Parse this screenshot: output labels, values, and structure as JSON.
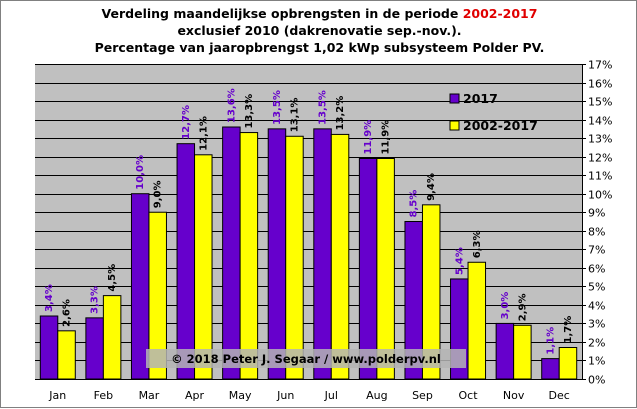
{
  "title": {
    "line1_prefix": "Verdeling maandelijkse opbrengsten in de periode ",
    "line1_highlight": "2002-2017",
    "line2": "exclusief 2010 (dakrenovatie sep.-nov.).",
    "line3": "Percentage van jaaropbrengst 1,02 kWp subsysteem Polder PV."
  },
  "chart_data": {
    "type": "bar",
    "categories": [
      "Jan",
      "Feb",
      "Mar",
      "Apr",
      "May",
      "Jun",
      "Jul",
      "Aug",
      "Sep",
      "Oct",
      "Nov",
      "Dec"
    ],
    "series": [
      {
        "name": "2017",
        "color": "#6600cc",
        "values": [
          3.4,
          3.3,
          10.0,
          12.7,
          13.6,
          13.5,
          13.5,
          11.9,
          8.5,
          5.4,
          3.0,
          1.1
        ],
        "labels": [
          "3,4%",
          "3,3%",
          "10,0%",
          "12,7%",
          "13,6%",
          "13,5%",
          "13,5%",
          "11,9%",
          "8,5%",
          "5,4%",
          "3,0%",
          "1,1%"
        ]
      },
      {
        "name": "2002-2017",
        "color": "#ffff00",
        "values": [
          2.6,
          4.5,
          9.0,
          12.1,
          13.3,
          13.1,
          13.2,
          11.9,
          9.4,
          6.3,
          2.9,
          1.7
        ],
        "labels": [
          "2,6%",
          "4,5%",
          "9,0%",
          "12,1%",
          "13,3%",
          "13,1%",
          "13,2%",
          "11,9%",
          "9,4%",
          "6,3%",
          "2,9%",
          "1,7%"
        ]
      }
    ],
    "ylim": [
      0,
      17
    ],
    "yticks": [
      "0%",
      "1%",
      "2%",
      "3%",
      "4%",
      "5%",
      "6%",
      "7%",
      "8%",
      "9%",
      "10%",
      "11%",
      "12%",
      "13%",
      "14%",
      "15%",
      "16%",
      "17%"
    ],
    "grid": true,
    "legend_position": "top-right",
    "plot_background": "#c0c0c0",
    "watermark": "© 2018 Peter J. Segaar / www.polderpv.nl"
  }
}
